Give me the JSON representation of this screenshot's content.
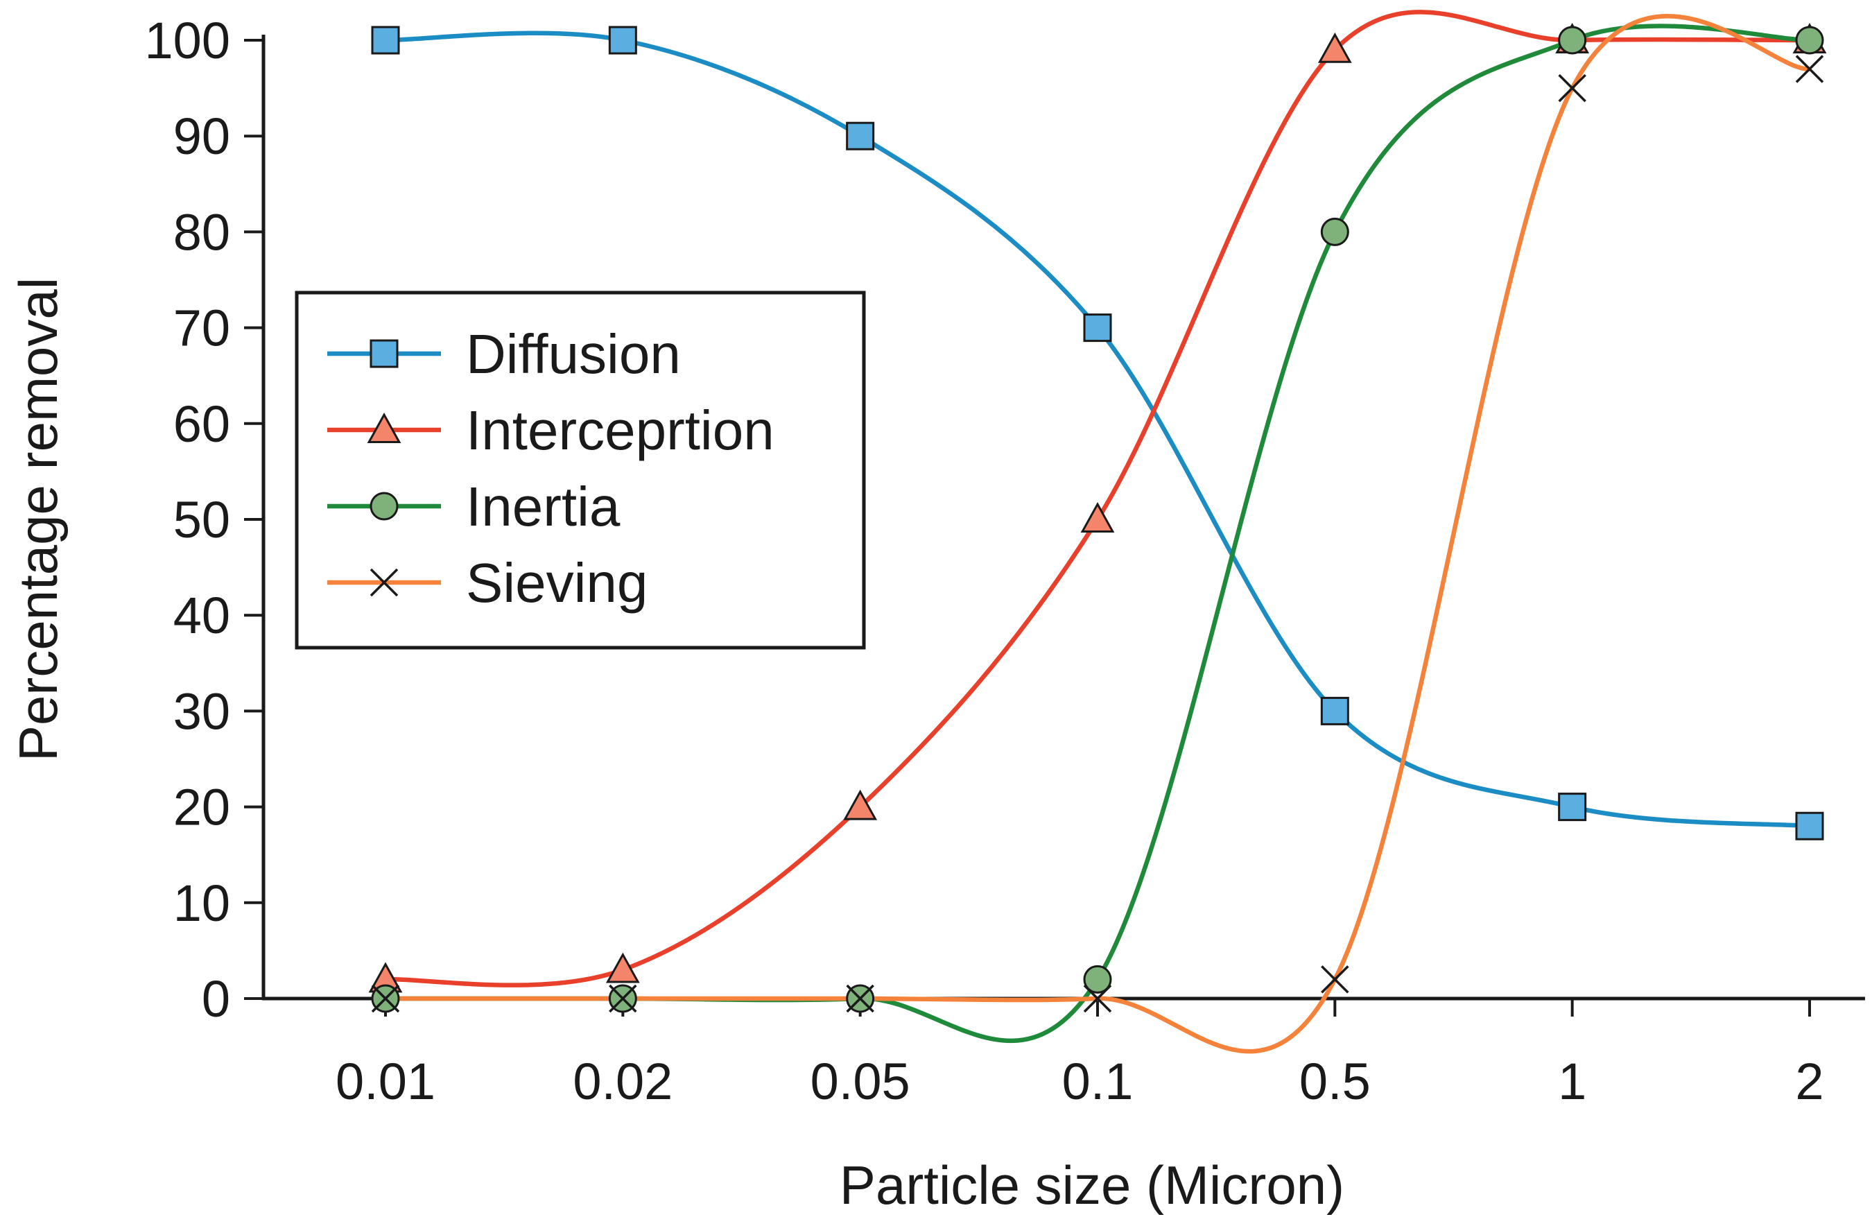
{
  "chart_data": {
    "type": "line",
    "title": "",
    "xlabel": "Particle size (Micron)",
    "ylabel": "Percentage removal",
    "categories": [
      "0.01",
      "0.02",
      "0.05",
      "0.1",
      "0.5",
      "1",
      "2"
    ],
    "ylim": [
      0,
      100
    ],
    "yticks": [
      0,
      10,
      20,
      30,
      40,
      50,
      60,
      70,
      80,
      90,
      100
    ],
    "grid": false,
    "legend_position": "middle-left",
    "series": [
      {
        "name": "Diffusion",
        "marker": "square",
        "color": "#1b8cc4",
        "marker_fill": "#5aaee0",
        "values": [
          100,
          100,
          90,
          70,
          30,
          20,
          18
        ]
      },
      {
        "name": "Interceprtion",
        "marker": "triangle",
        "color": "#e8402a",
        "marker_fill": "#f4846a",
        "values": [
          2,
          3,
          20,
          50,
          99,
          100,
          100
        ]
      },
      {
        "name": "Inertia",
        "marker": "circle",
        "color": "#1e8a3a",
        "marker_fill": "#7fb27a",
        "values": [
          0,
          0,
          0,
          2,
          80,
          100,
          100
        ]
      },
      {
        "name": "Sieving",
        "marker": "x",
        "color": "#f5823a",
        "marker_fill": "#000000",
        "values": [
          0,
          0,
          0,
          0,
          2,
          95,
          97
        ]
      }
    ]
  }
}
